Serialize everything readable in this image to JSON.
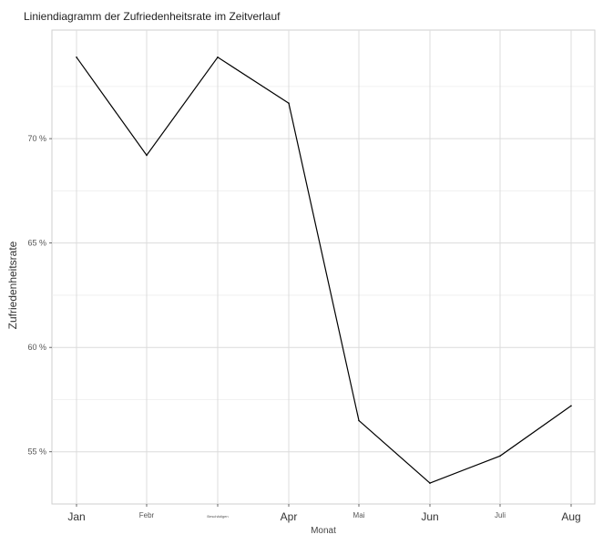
{
  "chart_data": {
    "type": "line",
    "title": "Liniendiagramm der Zufriedenheitsrate im Zeitverlauf",
    "xlabel": "Monat",
    "ylabel": "Zufriedenheitsrate",
    "categories": [
      "Jan",
      "Febr",
      "Beschädigen",
      "Apr",
      "Mai",
      "Jun",
      "Juli",
      "Aug"
    ],
    "values": [
      73.9,
      69.2,
      73.9,
      71.7,
      56.5,
      53.5,
      54.8,
      57.2
    ],
    "y_ticks": [
      55,
      60,
      65,
      70
    ],
    "y_tick_labels": [
      "55 %",
      "60 %",
      "65 %",
      "70 %"
    ],
    "ylim": [
      52.5,
      75.2
    ],
    "grid": true,
    "line_color": "#000000",
    "grid_color": "#dcdcdc"
  }
}
